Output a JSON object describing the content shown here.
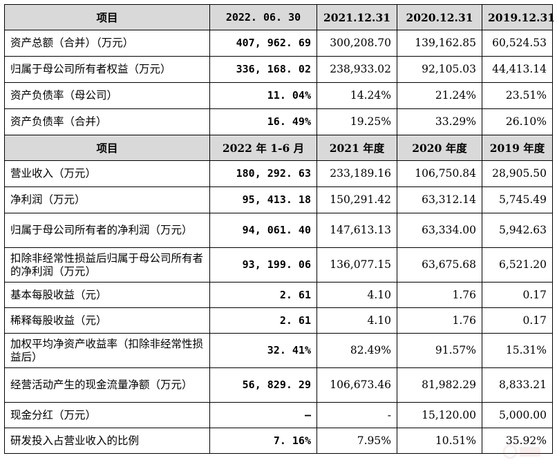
{
  "table1": {
    "header": [
      "项目",
      "2022. 06. 30",
      "2021.12.31",
      "2020.12.31",
      "2019.12.31"
    ],
    "rows": [
      {
        "label": "资产总额（合并）（万元）",
        "values": [
          "407, 962. 69",
          "300,208.70",
          "139,162.85",
          "60,524.53"
        ]
      },
      {
        "label": "归属于母公司所有者权益（万元）",
        "values": [
          "336, 168. 02",
          "238,933.02",
          "92,105.03",
          "44,413.14"
        ]
      },
      {
        "label": "资产负债率（母公司）",
        "values": [
          "11. 04%",
          "14.24%",
          "21.24%",
          "23.51%"
        ]
      },
      {
        "label": "资产负债率（合并）",
        "values": [
          "16. 49%",
          "19.25%",
          "33.29%",
          "26.10%"
        ]
      }
    ]
  },
  "table2": {
    "header": [
      "项目",
      "2022 年 1-6 月",
      "2021 年度",
      "2020 年度",
      "2019 年度"
    ],
    "rows": [
      {
        "label": "营业收入（万元）",
        "values": [
          "180, 292. 63",
          "233,189.16",
          "106,750.84",
          "28,905.50"
        ]
      },
      {
        "label": "净利润（万元）",
        "values": [
          "95, 413. 18",
          "150,291.42",
          "63,312.14",
          "5,745.49"
        ]
      },
      {
        "label": "归属于母公司所有者的净利润（万元）",
        "values": [
          "94, 061. 40",
          "147,613.13",
          "63,334.00",
          "5,942.63"
        ]
      },
      {
        "label": "扣除非经常性损益后归属于母公司所有者的净利润（万元）",
        "values": [
          "93, 199. 06",
          "136,077.15",
          "63,675.68",
          "6,521.20"
        ]
      },
      {
        "label": "基本每股收益（元）",
        "values": [
          "2. 61",
          "4.10",
          "1.76",
          "0.17"
        ]
      },
      {
        "label": "稀释每股收益（元）",
        "values": [
          "2. 61",
          "4.10",
          "1.76",
          "0.17"
        ]
      },
      {
        "label": "加权平均净资产收益率（扣除非经常性损益后）",
        "values": [
          "32. 41%",
          "82.49%",
          "91.57%",
          "15.31%"
        ]
      },
      {
        "label": "经营活动产生的现金流量净额（万元）",
        "values": [
          "56, 829. 29",
          "106,673.46",
          "81,982.29",
          "8,833.21"
        ]
      },
      {
        "label": "现金分红（万元）",
        "values": [
          "–",
          "-",
          "15,120.00",
          "5,000.00"
        ]
      },
      {
        "label": "研发投入占营业收入的比例",
        "values": [
          "7. 16%",
          "7.95%",
          "10.51%",
          "35.92%"
        ]
      }
    ]
  }
}
